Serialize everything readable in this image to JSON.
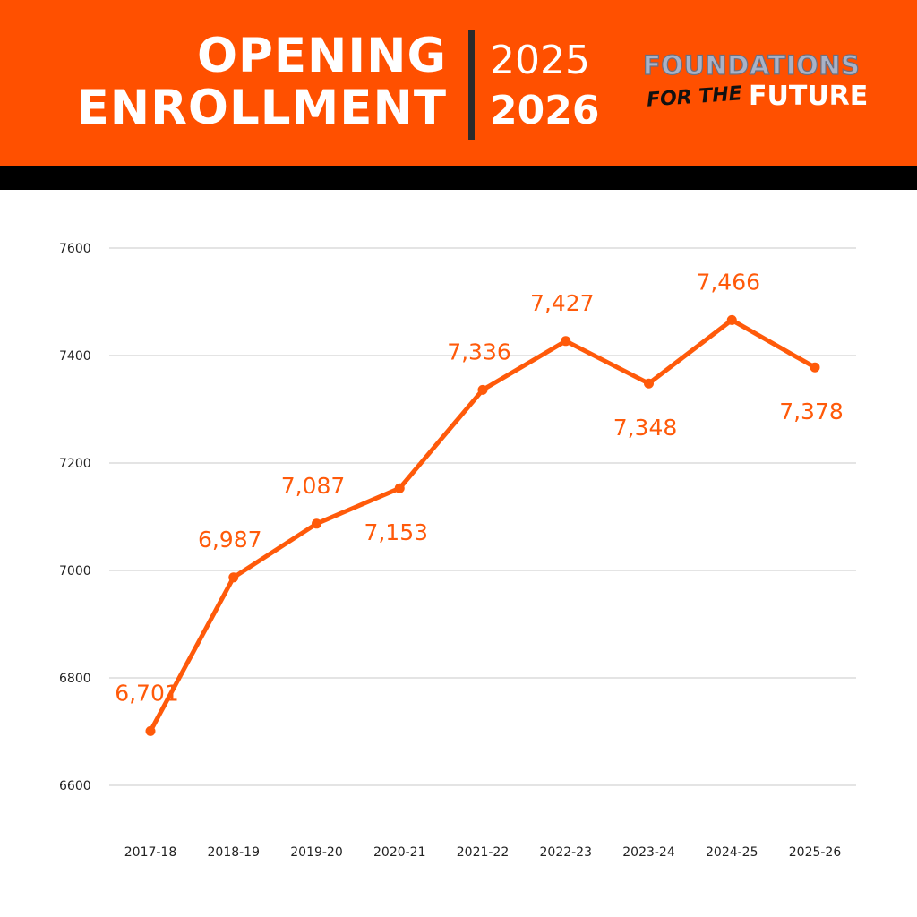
{
  "header": {
    "title_line1": "OPENING",
    "title_line2": "ENROLLMENT",
    "year_start": "2025",
    "year_end": "2026",
    "logo_top": "FOUNDATIONS",
    "logo_middle": "FOR THE",
    "logo_bottom": "FUTURE",
    "accent_color": "#ff5000",
    "stripe_color": "#000000"
  },
  "chart_data": {
    "type": "line",
    "title": "",
    "xlabel": "",
    "ylabel": "",
    "categories": [
      "2017-18",
      "2018-19",
      "2019-20",
      "2020-21",
      "2021-22",
      "2022-23",
      "2023-24",
      "2024-25",
      "2025-26"
    ],
    "series": [
      {
        "values": [
          6701,
          6987,
          7087,
          7153,
          7336,
          7427,
          7348,
          7466,
          7378
        ],
        "labels": [
          "6,701",
          "6,987",
          "7,087",
          "7,153",
          "7,336",
          "7,427",
          "7,348",
          "7,466",
          "7,378"
        ],
        "label_positions": [
          "above",
          "above",
          "above",
          "below",
          "above",
          "above",
          "below",
          "above",
          "below"
        ],
        "color": "#ff5a0a"
      }
    ],
    "ylim": [
      6600,
      7600
    ],
    "yticks": [
      "6600",
      "6800",
      "7000",
      "7200",
      "7400",
      "7600"
    ],
    "grid": true,
    "legend": "none"
  }
}
